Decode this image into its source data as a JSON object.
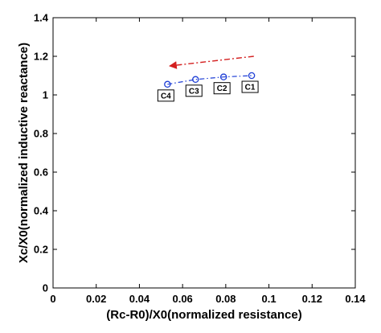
{
  "chart_data": {
    "type": "line",
    "title": "",
    "xlabel": "(Rc-R0)/X0(normalized resistance)",
    "ylabel": "Xc/X0(normalized inductive reactance)",
    "xlim": [
      0,
      0.14
    ],
    "ylim": [
      0,
      1.4
    ],
    "xticks": [
      0,
      0.02,
      0.04,
      0.06,
      0.08,
      0.1,
      0.12,
      0.14
    ],
    "xtick_labels": [
      "0",
      "0.02",
      "0.04",
      "0.06",
      "0.08",
      "0.1",
      "0.12",
      "0.14"
    ],
    "yticks": [
      0,
      0.2,
      0.4,
      0.6,
      0.8,
      1,
      1.2,
      1.4
    ],
    "ytick_labels": [
      "0",
      "0.2",
      "0.4",
      "0.6",
      "0.8",
      "1",
      "1.2",
      "1.4"
    ],
    "grid": false,
    "series": [
      {
        "color": "#1f3fd6",
        "line_style": "dash-dot",
        "marker": "circle",
        "x": [
          0.053,
          0.066,
          0.079,
          0.092
        ],
        "y": [
          1.055,
          1.08,
          1.093,
          1.1
        ],
        "point_labels": [
          "C4",
          "C3",
          "C2",
          "C1"
        ]
      }
    ],
    "annotations": [
      {
        "type": "arrow",
        "color": "#d42020",
        "line_style": "dash-dot",
        "from": [
          0.093,
          1.2
        ],
        "to": [
          0.054,
          1.15
        ]
      }
    ]
  }
}
